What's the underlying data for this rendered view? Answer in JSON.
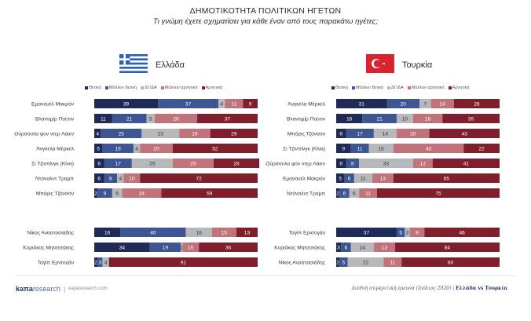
{
  "header": {
    "title": "ΔΗΜΟΤΙΚΟΤΗΤΑ ΠΟΛΙΤΙΚΩΝ ΗΓΕΤΩΝ",
    "subtitle": "Τι γνώμη έχετε σχηματίσει για κάθε έναν από τους παρακάτω ηγέτες;"
  },
  "colors": {
    "very_positive": "#1f2a57",
    "rather_positive": "#3d5592",
    "dk_na": "#b6b8bc",
    "rather_negative": "#c0737a",
    "negative": "#7e1f2b"
  },
  "chart_data": [
    {
      "type": "bar",
      "stacked": true,
      "orientation": "horizontal",
      "title": "Ελλάδα",
      "flag": "greece-flag",
      "legend": [
        "Θετική",
        "Μάλλον θετική",
        "ΔΓ/ΔΑ",
        "Μάλλον αρνητική",
        "Αρνητική"
      ],
      "xlim": [
        0,
        100
      ],
      "categories": [
        "Εμανουέλ Μακρόν",
        "Βλαντιμίρ Πούτιν",
        "Ούρσουλα φον ντερ Λάιεν",
        "Άνγκελα Μέρκελ",
        "Σι Τζινπίνγκ (Κίνα)",
        "Ντόναλντ Τραμπ",
        "Μπόρις Τζόνσον",
        "Νίκος Αναστασιάδης",
        "Κυριάκος Μητσοτάκης",
        "Ταγίπ Ερντογάν"
      ],
      "series": [
        {
          "name": "Θετική",
          "values": [
            39,
            11,
            4,
            5,
            6,
            6,
            2,
            16,
            34,
            2
          ]
        },
        {
          "name": "Μάλλον θετική",
          "values": [
            37,
            21,
            25,
            19,
            17,
            8,
            9,
            40,
            19,
            3
          ]
        },
        {
          "name": "ΔΓ/ΔΑ",
          "values": [
            4,
            5,
            23,
            4,
            25,
            4,
            6,
            16,
            1,
            4
          ]
        },
        {
          "name": "Μάλλον αρνητική",
          "values": [
            11,
            26,
            19,
            20,
            25,
            10,
            24,
            15,
            10,
            0
          ]
        },
        {
          "name": "Αρνητική",
          "values": [
            9,
            37,
            29,
            52,
            28,
            72,
            59,
            13,
            36,
            91
          ]
        }
      ]
    },
    {
      "type": "bar",
      "stacked": true,
      "orientation": "horizontal",
      "title": "Τουρκία",
      "flag": "turkey-flag",
      "legend": [
        "Θετική",
        "Μάλλον θετική",
        "ΔΓ/ΔΑ",
        "Μάλλον αρνητική",
        "Αρνητική"
      ],
      "xlim": [
        0,
        100
      ],
      "categories": [
        "Άνγκελα Μέρκελ",
        "Βλαντιμίρ Πούτιν",
        "Μπόρις Τζόνσον",
        "Σι Τζινπίνγκ (Κίνα)",
        "Ούρσουλα φον ντερ Λάιεν",
        "Εμανουέλ Μακρόν",
        "Ντόναλντ Τραμπ",
        "Ταγίπ Ερντογάν",
        "Κυριάκος Μητσοτάκης",
        "Νίκος Αναστασιάδης"
      ],
      "series": [
        {
          "name": "Θετική",
          "values": [
            31,
            16,
            6,
            9,
            6,
            5,
            2,
            37,
            3,
            2
          ]
        },
        {
          "name": "Μάλλον θετική",
          "values": [
            20,
            21,
            17,
            11,
            8,
            6,
            6,
            5,
            6,
            5
          ]
        },
        {
          "name": "ΔΓ/ΔΑ",
          "values": [
            7,
            10,
            14,
            15,
            33,
            11,
            6,
            3,
            14,
            22
          ]
        },
        {
          "name": "Μάλλον αρνητική",
          "values": [
            14,
            18,
            20,
            43,
            12,
            13,
            11,
            9,
            13,
            11
          ]
        },
        {
          "name": "Αρνητική",
          "values": [
            28,
            35,
            43,
            22,
            41,
            65,
            75,
            46,
            64,
            60
          ]
        }
      ]
    }
  ],
  "footer": {
    "logo_brand": "kaπa",
    "logo_research": "research",
    "url": "kaparesearch.com",
    "source_text": "Διεθνή συγκριτική έρευνα (Ιούλιος 2020)",
    "source_bold": "Ελλάδα vs Τουρκία"
  }
}
